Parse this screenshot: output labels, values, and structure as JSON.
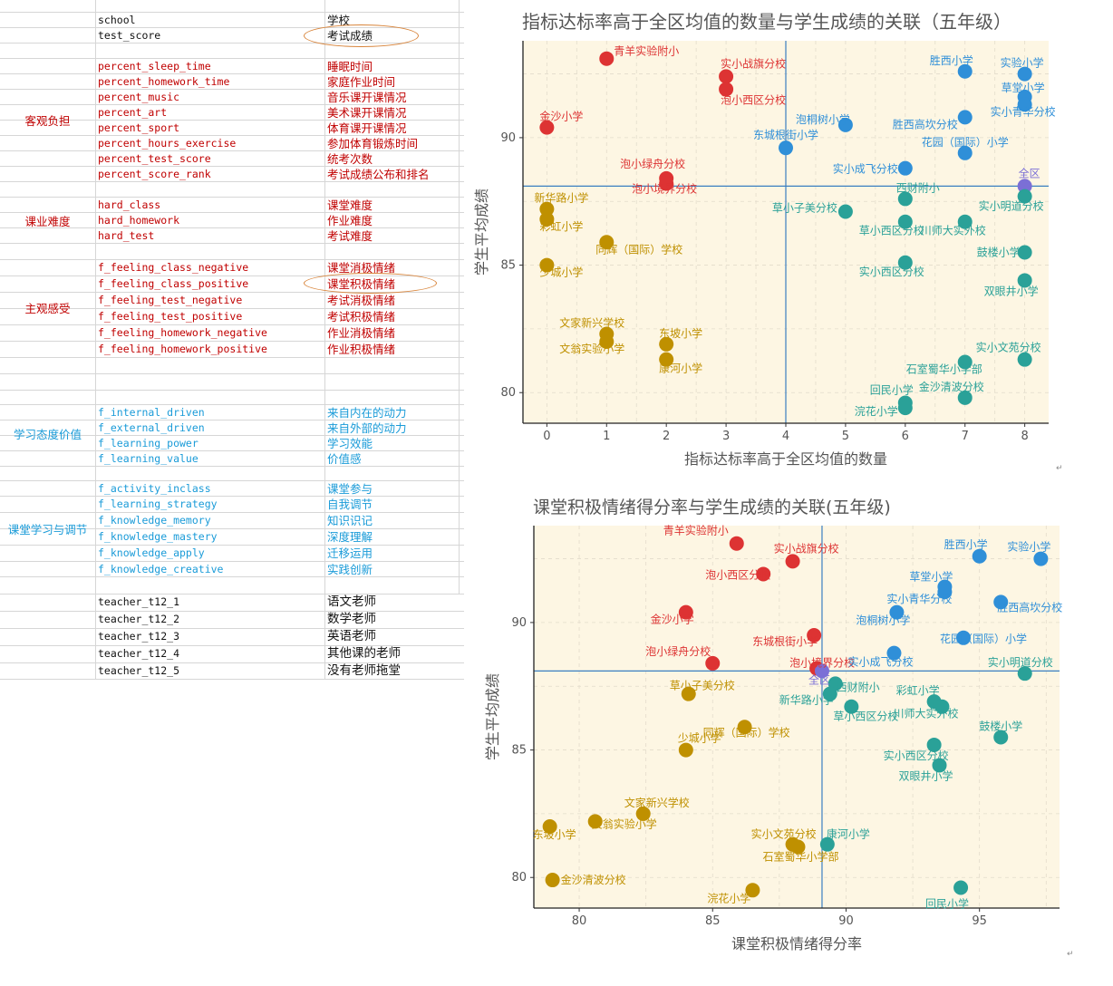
{
  "spreadsheet": {
    "rows": [
      {
        "var": "school",
        "cn": "学校",
        "color": "black"
      },
      {
        "var": "test_score",
        "cn": "考试成绩",
        "color": "black",
        "circled": true
      },
      {
        "var": "",
        "cn": "",
        "color": "black"
      },
      {
        "var": "percent_sleep_time",
        "cn": "睡眠时间",
        "color": "red"
      },
      {
        "var": "percent_homework_time",
        "cn": "家庭作业时间",
        "color": "red"
      },
      {
        "var": "percent_music",
        "cn": "音乐课开课情况",
        "color": "red"
      },
      {
        "var": "percent_art",
        "cn": "美术课开课情况",
        "color": "red"
      },
      {
        "var": "percent_sport",
        "cn": "体育课开课情况",
        "color": "red"
      },
      {
        "var": "percent_hours_exercise",
        "cn": "参加体育锻炼时间",
        "color": "red"
      },
      {
        "var": "percent_test_score",
        "cn": "统考次数",
        "color": "red"
      },
      {
        "var": "percent_score_rank",
        "cn": "考试成绩公布和排名",
        "color": "red"
      },
      {
        "var": "",
        "cn": "",
        "color": "black"
      },
      {
        "var": "hard_class",
        "cn": "课堂难度",
        "color": "red"
      },
      {
        "var": "hard_homework",
        "cn": "作业难度",
        "color": "red"
      },
      {
        "var": "hard_test",
        "cn": "考试难度",
        "color": "red"
      },
      {
        "var": "",
        "cn": "",
        "color": "black"
      },
      {
        "var": "f_feeling_class_negative",
        "cn": "课堂消极情绪",
        "color": "red"
      },
      {
        "var": "f_feeling_class_positive",
        "cn": "课堂积极情绪",
        "color": "red",
        "circled": true
      },
      {
        "var": "f_feeling_test_negative",
        "cn": "考试消极情绪",
        "color": "red"
      },
      {
        "var": "f_feeling_test_positive",
        "cn": "考试积极情绪",
        "color": "red"
      },
      {
        "var": "f_feeling_homework_negative",
        "cn": "作业消极情绪",
        "color": "red"
      },
      {
        "var": "f_feeling_homework_positive",
        "cn": "作业积极情绪",
        "color": "red"
      },
      {
        "var": "",
        "cn": "",
        "color": "black"
      },
      {
        "var": "",
        "cn": "",
        "color": "black"
      },
      {
        "var": "",
        "cn": "",
        "color": "black"
      },
      {
        "var": "f_internal_driven",
        "cn": "来自内在的动力",
        "color": "blue"
      },
      {
        "var": "f_external_driven",
        "cn": "来自外部的动力",
        "color": "blue"
      },
      {
        "var": "f_learning_power",
        "cn": "学习效能",
        "color": "blue"
      },
      {
        "var": "f_learning_value",
        "cn": "价值感",
        "color": "blue"
      },
      {
        "var": "",
        "cn": "",
        "color": "black"
      },
      {
        "var": "f_activity_inclass",
        "cn": "课堂参与",
        "color": "blue"
      },
      {
        "var": "f_learning_strategy",
        "cn": "自我调节",
        "color": "blue"
      },
      {
        "var": "f_knowledge_memory",
        "cn": "知识识记",
        "color": "blue"
      },
      {
        "var": "f_knowledge_mastery",
        "cn": "深度理解",
        "color": "blue"
      },
      {
        "var": "f_knowledge_apply",
        "cn": "迁移运用",
        "color": "blue"
      },
      {
        "var": "f_knowledge_creative",
        "cn": "实践创新",
        "color": "blue"
      },
      {
        "var": "",
        "cn": "",
        "color": "black"
      },
      {
        "var": "teacher_t12_1",
        "cn": "语文老师",
        "color": "black"
      },
      {
        "var": "teacher_t12_2",
        "cn": "数学老师",
        "color": "black"
      },
      {
        "var": "teacher_t12_3",
        "cn": "英语老师",
        "color": "black"
      },
      {
        "var": "teacher_t12_4",
        "cn": "其他课的老师",
        "color": "black"
      },
      {
        "var": "teacher_t12_5",
        "cn": "没有老师拖堂",
        "color": "black"
      }
    ],
    "categories": [
      {
        "label": "客观负担",
        "color": "red"
      },
      {
        "label": "课业难度",
        "color": "red"
      },
      {
        "label": "主观感受",
        "color": "red"
      },
      {
        "label": "学习态度价值",
        "color": "blue"
      },
      {
        "label": "课堂学习与调节",
        "color": "blue"
      }
    ]
  },
  "colors": {
    "red": "#dd3333",
    "gold": "#bf9000",
    "blue": "#2f8fd8",
    "teal": "#2aa198",
    "overall": "#7b6fd6",
    "panel": "#fdf6e3",
    "refline": "#3a7fc1",
    "sheet_red": "#c00000",
    "sheet_blue": "#1a9bd8",
    "circle": "#d8843a"
  },
  "chart_data": [
    {
      "type": "scatter",
      "title": "指标达标率高于全区均值的数量与学生成绩的关联（五年级）",
      "xlabel": "指标达标率高于全区均值的数量",
      "ylabel": "学生平均成绩",
      "xlim": [
        -0.4,
        8.4
      ],
      "ylim": [
        78.8,
        93.8
      ],
      "xticks": [
        0,
        1,
        2,
        3,
        4,
        5,
        6,
        7,
        8
      ],
      "yticks": [
        80,
        85,
        90
      ],
      "vline": 4,
      "hline": 88.1,
      "grid": true,
      "points": [
        {
          "name": "青羊实验附小",
          "x": 1,
          "y": 93.1,
          "group": "red"
        },
        {
          "name": "实小战旗分校",
          "x": 3,
          "y": 92.4,
          "group": "red"
        },
        {
          "name": "泡小西区分校",
          "x": 3,
          "y": 91.9,
          "group": "red"
        },
        {
          "name": "金沙小学",
          "x": 0,
          "y": 90.4,
          "group": "red"
        },
        {
          "name": "泡小绿舟分校",
          "x": 2,
          "y": 88.4,
          "group": "red"
        },
        {
          "name": "泡小境界分校",
          "x": 2,
          "y": 88.2,
          "group": "red"
        },
        {
          "name": "新华路小学",
          "x": 0,
          "y": 87.2,
          "group": "gold"
        },
        {
          "name": "彩虹小学",
          "x": 0,
          "y": 86.8,
          "group": "gold"
        },
        {
          "name": "同辉（国际）学校",
          "x": 1,
          "y": 85.9,
          "group": "gold"
        },
        {
          "name": "少城小学",
          "x": 0,
          "y": 85.0,
          "group": "gold"
        },
        {
          "name": "文家新兴学校",
          "x": 1,
          "y": 82.3,
          "group": "gold"
        },
        {
          "name": "文翁实验小学",
          "x": 1,
          "y": 82.0,
          "group": "gold"
        },
        {
          "name": "东坡小学",
          "x": 2,
          "y": 81.9,
          "group": "gold"
        },
        {
          "name": "康河小学",
          "x": 2,
          "y": 81.3,
          "group": "gold"
        },
        {
          "name": "胜西小学",
          "x": 7,
          "y": 92.6,
          "group": "blue"
        },
        {
          "name": "实验小学",
          "x": 8,
          "y": 92.5,
          "group": "blue"
        },
        {
          "name": "草堂小学",
          "x": 8,
          "y": 91.6,
          "group": "blue"
        },
        {
          "name": "实小青华分校",
          "x": 8,
          "y": 91.3,
          "group": "blue"
        },
        {
          "name": "胜西高坎分校",
          "x": 7,
          "y": 90.8,
          "group": "blue"
        },
        {
          "name": "泡桐树小学",
          "x": 5,
          "y": 90.5,
          "group": "blue"
        },
        {
          "name": "东城根街小学",
          "x": 4,
          "y": 89.6,
          "group": "blue"
        },
        {
          "name": "花园（国际）小学",
          "x": 7,
          "y": 89.4,
          "group": "blue"
        },
        {
          "name": "实小成飞分校",
          "x": 6,
          "y": 88.8,
          "group": "blue"
        },
        {
          "name": "全区",
          "x": 8,
          "y": 88.1,
          "group": "overall"
        },
        {
          "name": "西财附小",
          "x": 6,
          "y": 87.6,
          "group": "teal"
        },
        {
          "name": "实小明道分校",
          "x": 8,
          "y": 87.7,
          "group": "teal"
        },
        {
          "name": "草小子美分校",
          "x": 5,
          "y": 87.1,
          "group": "teal"
        },
        {
          "name": "草小西区分校",
          "x": 6,
          "y": 86.7,
          "group": "teal"
        },
        {
          "name": "川师大实外校",
          "x": 7,
          "y": 86.7,
          "group": "teal"
        },
        {
          "name": "鼓楼小学",
          "x": 8,
          "y": 85.5,
          "group": "teal"
        },
        {
          "name": "实小西区分校",
          "x": 6,
          "y": 85.1,
          "group": "teal"
        },
        {
          "name": "双眼井小学",
          "x": 8,
          "y": 84.4,
          "group": "teal"
        },
        {
          "name": "实小文苑分校",
          "x": 8,
          "y": 81.3,
          "group": "teal"
        },
        {
          "name": "石室蜀华小学部",
          "x": 7,
          "y": 81.2,
          "group": "teal"
        },
        {
          "name": "金沙清波分校",
          "x": 7,
          "y": 79.8,
          "group": "teal"
        },
        {
          "name": "回民小学",
          "x": 6,
          "y": 79.6,
          "group": "teal"
        },
        {
          "name": "浣花小学",
          "x": 6,
          "y": 79.4,
          "group": "teal"
        }
      ]
    },
    {
      "type": "scatter",
      "title": "课堂积极情绪得分率与学生成绩的关联(五年级)",
      "xlabel": "课堂积极情绪得分率",
      "ylabel": "学生平均成绩",
      "xlim": [
        78.3,
        98.0
      ],
      "ylim": [
        78.8,
        93.8
      ],
      "xticks": [
        80,
        85,
        90,
        95
      ],
      "yticks": [
        80,
        85,
        90
      ],
      "vline": 89.1,
      "hline": 88.1,
      "grid": true,
      "points": [
        {
          "name": "青羊实验附小",
          "x": 85.9,
          "y": 93.1,
          "group": "red"
        },
        {
          "name": "实小战旗分校",
          "x": 88.0,
          "y": 92.4,
          "group": "red"
        },
        {
          "name": "泡小西区分校",
          "x": 86.9,
          "y": 91.9,
          "group": "red"
        },
        {
          "name": "金沙小学",
          "x": 84.0,
          "y": 90.4,
          "group": "red"
        },
        {
          "name": "东城根街小学",
          "x": 88.8,
          "y": 89.5,
          "group": "red"
        },
        {
          "name": "泡小绿舟分校",
          "x": 85.0,
          "y": 88.4,
          "group": "red"
        },
        {
          "name": "泡小境界分校",
          "x": 88.9,
          "y": 88.2,
          "group": "red"
        },
        {
          "name": "草小子美分校",
          "x": 84.1,
          "y": 87.2,
          "group": "gold"
        },
        {
          "name": "同辉（国际）学校",
          "x": 86.2,
          "y": 85.9,
          "group": "gold"
        },
        {
          "name": "少城小学",
          "x": 84.0,
          "y": 85.0,
          "group": "gold"
        },
        {
          "name": "文家新兴学校",
          "x": 82.4,
          "y": 82.5,
          "group": "gold"
        },
        {
          "name": "文翁实验小学",
          "x": 80.6,
          "y": 82.2,
          "group": "gold"
        },
        {
          "name": "东坡小学",
          "x": 78.9,
          "y": 82.0,
          "group": "gold"
        },
        {
          "name": "实小文苑分校",
          "x": 88.0,
          "y": 81.3,
          "group": "gold"
        },
        {
          "name": "石室蜀华小学部",
          "x": 88.2,
          "y": 81.2,
          "group": "gold"
        },
        {
          "name": "金沙清波分校",
          "x": 79.0,
          "y": 79.9,
          "group": "gold"
        },
        {
          "name": "浣花小学",
          "x": 86.5,
          "y": 79.5,
          "group": "gold"
        },
        {
          "name": "胜西小学",
          "x": 95.0,
          "y": 92.6,
          "group": "blue"
        },
        {
          "name": "实验小学",
          "x": 97.3,
          "y": 92.5,
          "group": "blue"
        },
        {
          "name": "草堂小学",
          "x": 93.7,
          "y": 91.4,
          "group": "blue"
        },
        {
          "name": "实小青华分校",
          "x": 93.7,
          "y": 91.2,
          "group": "blue"
        },
        {
          "name": "胜西高坎分校",
          "x": 95.8,
          "y": 90.8,
          "group": "blue"
        },
        {
          "name": "泡桐树小学",
          "x": 91.9,
          "y": 90.4,
          "group": "blue"
        },
        {
          "name": "花园（国际）小学",
          "x": 94.4,
          "y": 89.4,
          "group": "blue"
        },
        {
          "name": "实小成飞分校",
          "x": 91.8,
          "y": 88.8,
          "group": "blue"
        },
        {
          "name": "全区",
          "x": 89.1,
          "y": 88.1,
          "group": "overall"
        },
        {
          "name": "实小明道分校",
          "x": 96.7,
          "y": 88.0,
          "group": "teal"
        },
        {
          "name": "西财附小",
          "x": 89.6,
          "y": 87.6,
          "group": "teal"
        },
        {
          "name": "新华路小学",
          "x": 89.4,
          "y": 87.2,
          "group": "teal"
        },
        {
          "name": "草小西区分校",
          "x": 90.2,
          "y": 86.7,
          "group": "teal"
        },
        {
          "name": "彩虹小学",
          "x": 93.3,
          "y": 86.9,
          "group": "teal"
        },
        {
          "name": "川师大实外校",
          "x": 93.6,
          "y": 86.7,
          "group": "teal"
        },
        {
          "name": "鼓楼小学",
          "x": 95.8,
          "y": 85.5,
          "group": "teal"
        },
        {
          "name": "实小西区分校",
          "x": 93.3,
          "y": 85.2,
          "group": "teal"
        },
        {
          "name": "双眼井小学",
          "x": 93.5,
          "y": 84.4,
          "group": "teal"
        },
        {
          "name": "康河小学",
          "x": 89.3,
          "y": 81.3,
          "group": "teal"
        },
        {
          "name": "回民小学",
          "x": 94.3,
          "y": 79.6,
          "group": "teal"
        }
      ]
    }
  ]
}
